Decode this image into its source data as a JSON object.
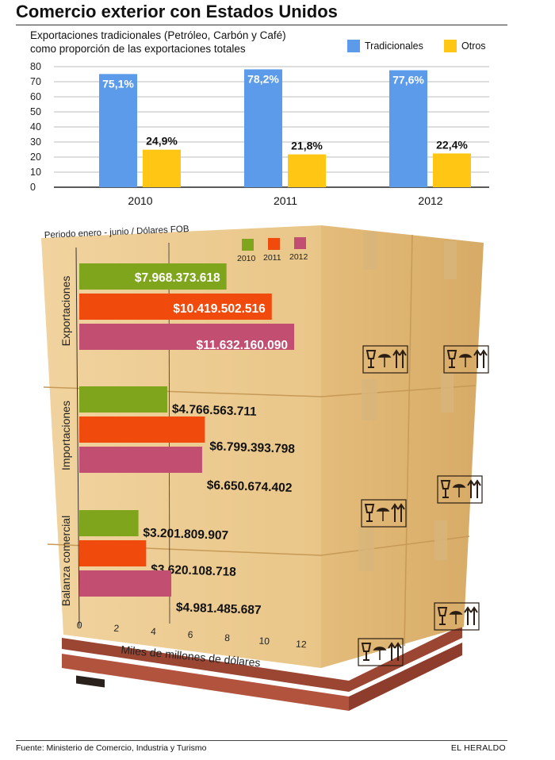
{
  "title": "Comercio exterior con Estados Unidos",
  "source": "Fuente: Ministerio de Comercio, Industria y Turismo",
  "brand": "EL HERALDO",
  "colors": {
    "tradicionales": "#5b9bea",
    "otros": "#ffc614",
    "y2010": "#7fa51c",
    "y2011": "#f04a0c",
    "y2012": "#c24f72",
    "box": "#efcf9a",
    "pallet": "#b2543d"
  },
  "chart_data": [
    {
      "type": "bar",
      "title": "Exportaciones tradicionales (Petróleo, Carbón y Café)",
      "subtitle": "como proporción de las exportaciones totales",
      "categories": [
        "2010",
        "2011",
        "2012"
      ],
      "series": [
        {
          "name": "Tradicionales",
          "values": [
            75.1,
            78.2,
            77.6
          ],
          "labels": [
            "75,1%",
            "78,2%",
            "77,6%"
          ]
        },
        {
          "name": "Otros",
          "values": [
            24.9,
            21.8,
            22.4
          ],
          "labels": [
            "24,9%",
            "21,8%",
            "22,4%"
          ]
        }
      ],
      "ylim": [
        0,
        80
      ],
      "yticks": [
        "0",
        "10",
        "20",
        "30",
        "40",
        "50",
        "60",
        "70",
        "80"
      ],
      "grid": true,
      "legend": "top-right"
    },
    {
      "type": "bar",
      "orientation": "horizontal",
      "subtitle": "Periodo enero - junio / Dólares FOB",
      "xlabel": "Miles de millones de dólares",
      "xlim": [
        0,
        12
      ],
      "xticks": [
        "0",
        "2",
        "4",
        "6",
        "8",
        "10",
        "12"
      ],
      "legend": "top-right",
      "series_names": [
        "2010",
        "2011",
        "2012"
      ],
      "groups": [
        {
          "name": "Exportaciones",
          "values": [
            7968373618,
            10419502516,
            11632160090
          ],
          "labels": [
            "$7.968.373.618",
            "$10.419.502.516",
            "$11.632.160.090"
          ]
        },
        {
          "name": "Importaciones",
          "values": [
            4766563711,
            6799393798,
            6650674402
          ],
          "labels": [
            "$4.766.563.711",
            "$6.799.393.798",
            "$6.650.674.402"
          ]
        },
        {
          "name": "Balanza comercial",
          "values": [
            3201809907,
            3620108718,
            4981485687
          ],
          "labels": [
            "$3.201.809.907",
            "$3.620.108.718",
            "$4.981.485.687"
          ]
        }
      ]
    }
  ]
}
